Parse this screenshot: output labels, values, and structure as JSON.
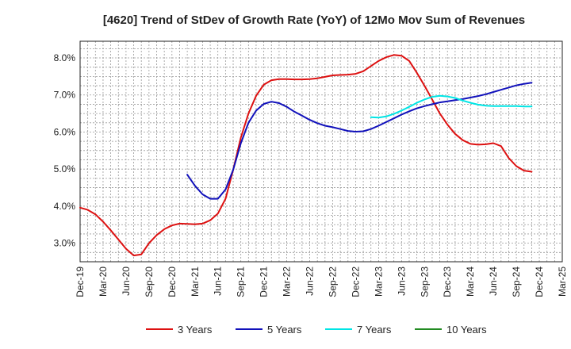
{
  "chart_data": {
    "type": "line",
    "title": "[4620]  Trend of StDev of Growth Rate (YoY) of 12Mo Mov Sum of Revenues",
    "xlabel": "",
    "ylabel": "",
    "x_tick_labels": [
      "Dec-19",
      "Mar-20",
      "Jun-20",
      "Sep-20",
      "Dec-20",
      "Mar-21",
      "Jun-21",
      "Sep-21",
      "Dec-21",
      "Mar-22",
      "Jun-22",
      "Sep-22",
      "Dec-22",
      "Mar-23",
      "Jun-23",
      "Sep-23",
      "Dec-23",
      "Mar-24",
      "Jun-24",
      "Sep-24",
      "Dec-24",
      "Mar-25"
    ],
    "y_ticks": [
      3.0,
      4.0,
      5.0,
      6.0,
      7.0,
      8.0
    ],
    "y_tick_labels": [
      "3.0%",
      "4.0%",
      "5.0%",
      "6.0%",
      "7.0%",
      "8.0%"
    ],
    "ylim": [
      2.5,
      8.45
    ],
    "grid": true,
    "legend_position": "bottom",
    "series": [
      {
        "name": "3 Years",
        "color": "#dd1111",
        "start_index": 0,
        "values": [
          3.96,
          3.9,
          3.78,
          3.58,
          3.35,
          3.1,
          2.85,
          2.67,
          2.7,
          3.0,
          3.22,
          3.38,
          3.48,
          3.53,
          3.52,
          3.51,
          3.53,
          3.62,
          3.8,
          4.2,
          4.98,
          5.85,
          6.5,
          6.98,
          7.28,
          7.4,
          7.43,
          7.43,
          7.42,
          7.42,
          7.43,
          7.45,
          7.49,
          7.53,
          7.54,
          7.55,
          7.57,
          7.64,
          7.78,
          7.92,
          8.02,
          8.08,
          8.06,
          7.92,
          7.6,
          7.25,
          6.88,
          6.5,
          6.2,
          5.95,
          5.78,
          5.68,
          5.66,
          5.67,
          5.7,
          5.62,
          5.3,
          5.08,
          4.96,
          4.93
        ]
      },
      {
        "name": "5 Years",
        "color": "#1111bb",
        "start_index": 14,
        "values": [
          4.85,
          4.55,
          4.32,
          4.2,
          4.2,
          4.45,
          4.98,
          5.7,
          6.25,
          6.58,
          6.76,
          6.82,
          6.78,
          6.68,
          6.55,
          6.44,
          6.33,
          6.24,
          6.17,
          6.13,
          6.08,
          6.03,
          6.01,
          6.02,
          6.08,
          6.17,
          6.27,
          6.37,
          6.47,
          6.56,
          6.64,
          6.7,
          6.75,
          6.8,
          6.83,
          6.86,
          6.89,
          6.93,
          6.97,
          7.02,
          7.08,
          7.14,
          7.2,
          7.26,
          7.3,
          7.33
        ]
      },
      {
        "name": "7 Years",
        "color": "#00e5e5",
        "start_index": 38,
        "values": [
          6.4,
          6.39,
          6.42,
          6.49,
          6.58,
          6.68,
          6.79,
          6.88,
          6.95,
          6.98,
          6.96,
          6.92,
          6.85,
          6.79,
          6.74,
          6.71,
          6.7,
          6.7,
          6.7,
          6.7,
          6.69,
          6.69
        ]
      },
      {
        "name": "10 Years",
        "color": "#228b22",
        "start_index": 0,
        "values": []
      }
    ]
  }
}
